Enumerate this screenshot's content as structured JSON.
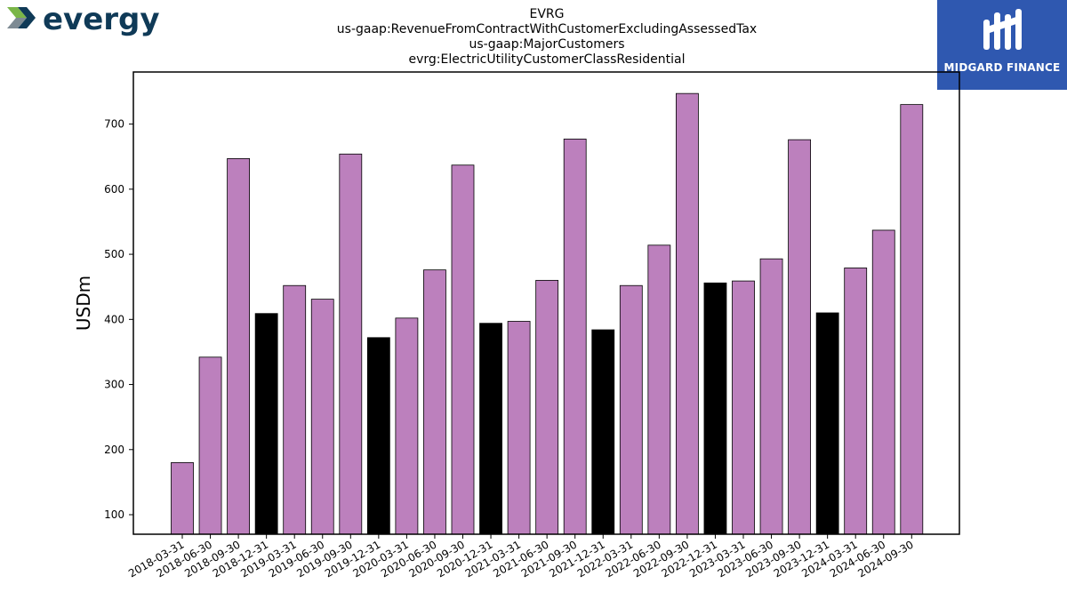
{
  "header": {
    "company_logo_text": "evergy",
    "publisher_logo_text": "MIDGARD FINANCE"
  },
  "colors": {
    "bar_default": "#bc80bd",
    "bar_q4": "#000000",
    "bar_edge": "#000000",
    "logo_dark": "#0f3a57",
    "logo_green": "#7ab648",
    "logo_gray": "#7d8a93",
    "publisher_bg": "#2f58b0"
  },
  "chart_data": {
    "type": "bar",
    "title_lines": [
      "EVRG",
      "us-gaap:RevenueFromContractWithCustomerExcludingAssessedTax",
      "us-gaap:MajorCustomers",
      "evrg:ElectricUtilityCustomerClassResidential"
    ],
    "xlabel": "",
    "ylabel": "USDm",
    "ylim": [
      70,
      780
    ],
    "yticks": [
      100,
      200,
      300,
      400,
      500,
      600,
      700
    ],
    "grid": false,
    "categories": [
      "2018-03-31",
      "2018-06-30",
      "2018-09-30",
      "2018-12-31",
      "2019-03-31",
      "2019-06-30",
      "2019-09-30",
      "2019-12-31",
      "2020-03-31",
      "2020-06-30",
      "2020-09-30",
      "2020-12-31",
      "2021-03-31",
      "2021-06-30",
      "2021-09-30",
      "2021-12-31",
      "2022-03-31",
      "2022-06-30",
      "2022-09-30",
      "2022-12-31",
      "2023-03-31",
      "2023-06-30",
      "2023-09-30",
      "2023-12-31",
      "2024-03-31",
      "2024-06-30",
      "2024-09-30"
    ],
    "values": [
      180,
      342,
      647,
      409,
      452,
      431,
      654,
      372,
      402,
      476,
      637,
      394,
      397,
      460,
      677,
      384,
      452,
      514,
      747,
      456,
      459,
      493,
      676,
      410,
      479,
      537,
      730
    ],
    "highlight_q4": [
      false,
      false,
      false,
      true,
      false,
      false,
      false,
      true,
      false,
      false,
      false,
      true,
      false,
      false,
      false,
      true,
      false,
      false,
      false,
      true,
      false,
      false,
      false,
      true,
      false,
      false,
      false
    ]
  }
}
